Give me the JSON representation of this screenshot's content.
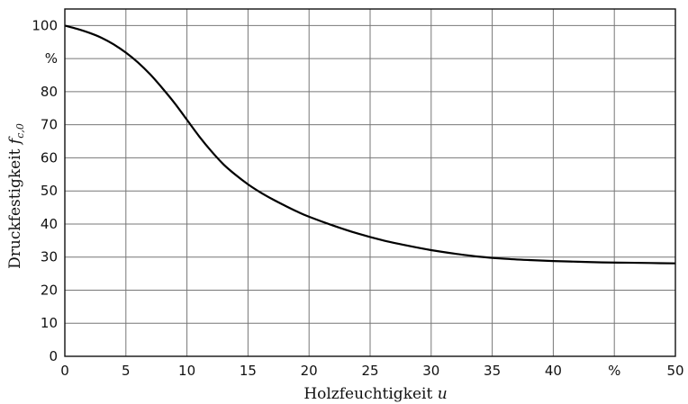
{
  "chart_data": {
    "type": "line",
    "title": "",
    "xlabel": {
      "text": "Holzfeuchtigkeit ",
      "symbol": "u"
    },
    "ylabel": {
      "text": "Druckfestigkeit ",
      "symbol": "f",
      "subscript": "c,0"
    },
    "xlim": [
      0,
      50
    ],
    "ylim": [
      0,
      105
    ],
    "x_ticks": [
      {
        "value": 0,
        "label": "0"
      },
      {
        "value": 5,
        "label": "5"
      },
      {
        "value": 10,
        "label": "10"
      },
      {
        "value": 15,
        "label": "15"
      },
      {
        "value": 20,
        "label": "20"
      },
      {
        "value": 25,
        "label": "25"
      },
      {
        "value": 30,
        "label": "30"
      },
      {
        "value": 35,
        "label": "35"
      },
      {
        "value": 40,
        "label": "40"
      },
      {
        "value": 45,
        "label": "%"
      },
      {
        "value": 50,
        "label": "50"
      }
    ],
    "y_ticks": [
      {
        "value": 0,
        "label": "0"
      },
      {
        "value": 10,
        "label": "10"
      },
      {
        "value": 20,
        "label": "20"
      },
      {
        "value": 30,
        "label": "30"
      },
      {
        "value": 40,
        "label": "40"
      },
      {
        "value": 50,
        "label": "50"
      },
      {
        "value": 60,
        "label": "60"
      },
      {
        "value": 70,
        "label": "70"
      },
      {
        "value": 80,
        "label": "80"
      },
      {
        "value": 90,
        "label": "%"
      },
      {
        "value": 100,
        "label": "100"
      }
    ],
    "grid": true,
    "series": [
      {
        "color": "#000000",
        "x": [
          0,
          1,
          2,
          3,
          4,
          5,
          6,
          7,
          8,
          9,
          10,
          11,
          12,
          13,
          14,
          15,
          16,
          17,
          18,
          19,
          20,
          22,
          24,
          26,
          28,
          30,
          32,
          34,
          36,
          38,
          40,
          42,
          44,
          46,
          48,
          50
        ],
        "y": [
          100,
          99,
          97.8,
          96.3,
          94.3,
          91.8,
          88.8,
          85.2,
          81,
          76.5,
          71.5,
          66.5,
          62,
          58,
          54.8,
          52,
          49.6,
          47.5,
          45.6,
          43.8,
          42.2,
          39.5,
          37.1,
          35.1,
          33.5,
          32.1,
          31,
          30.1,
          29.5,
          29.1,
          28.8,
          28.6,
          28.4,
          28.3,
          28.2,
          28.1
        ]
      }
    ]
  }
}
